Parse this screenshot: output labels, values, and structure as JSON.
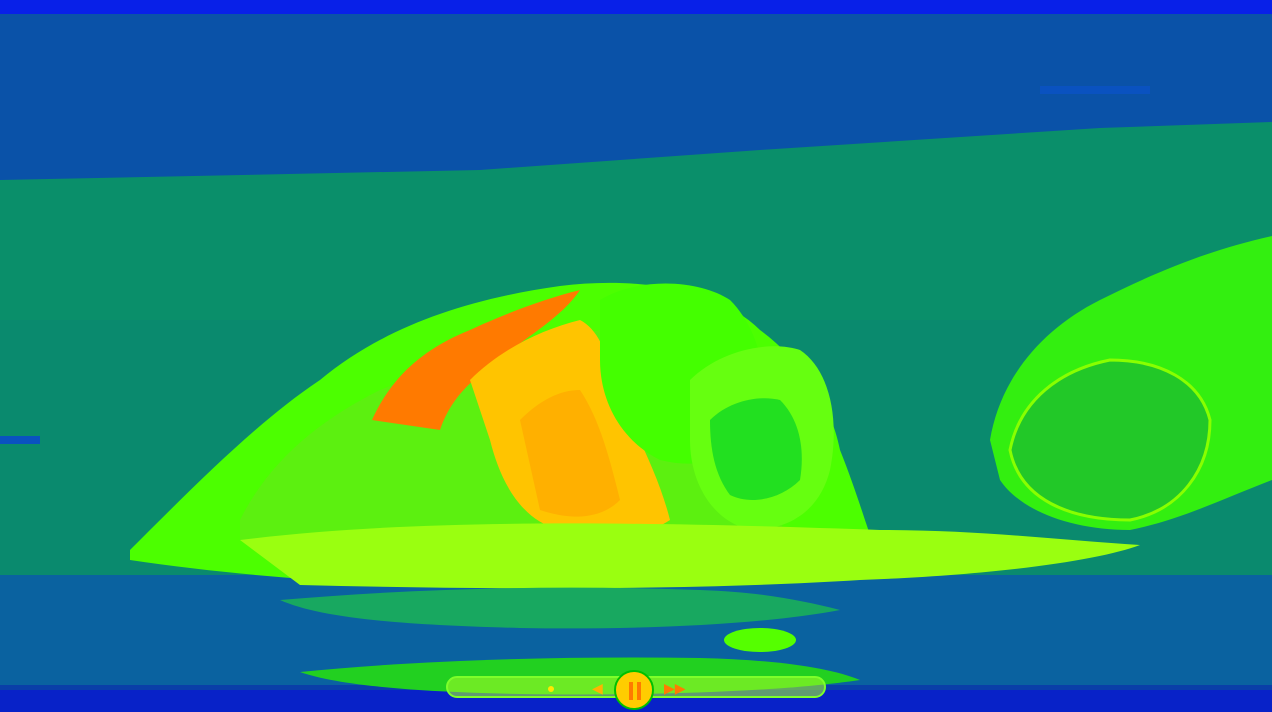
{
  "app": {
    "view": "video-player-heatmap"
  },
  "colors": {
    "background_top": "#0a3fa8",
    "background_band": "#0a8f6a",
    "foreground_green": "#4cff00",
    "hot_yellow": "#ffc400",
    "hot_orange": "#ff7a00"
  },
  "player": {
    "state": "playing",
    "rewind_icon": "rewind-icon",
    "play_pause_icon": "pause-icon",
    "forward_icon": "fast-forward-icon",
    "rewind_glyph": "◀",
    "forward_glyph": "▶▶"
  }
}
